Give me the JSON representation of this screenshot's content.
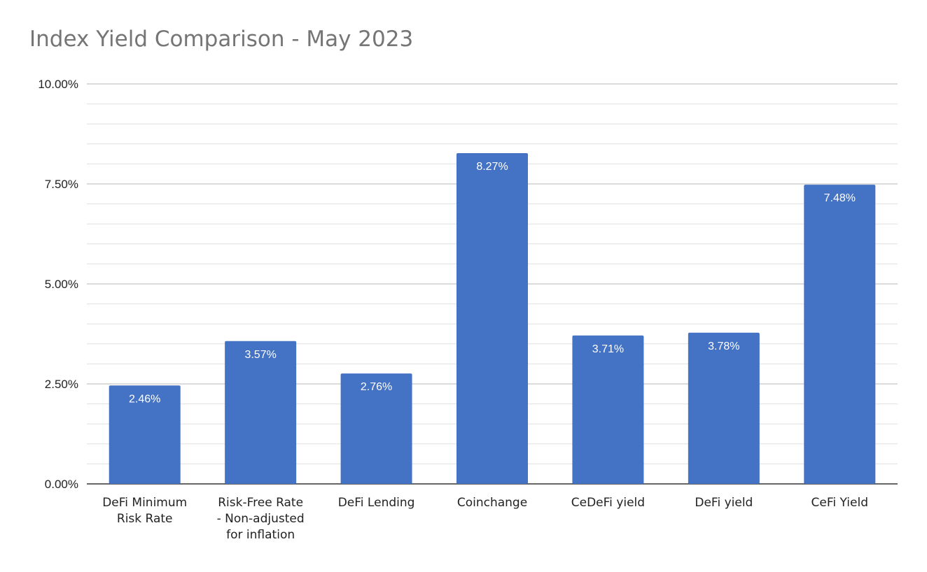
{
  "chart_data": {
    "type": "bar",
    "title": "Index Yield Comparison - May 2023",
    "categories": [
      [
        "DeFi Minimum",
        "Risk Rate"
      ],
      [
        "Risk-Free Rate",
        "- Non-adjusted",
        "for inflation"
      ],
      [
        "DeFi Lending"
      ],
      [
        "Coinchange"
      ],
      [
        "CeDeFi yield"
      ],
      [
        "DeFi yield"
      ],
      [
        "CeFi Yield"
      ]
    ],
    "values": [
      2.46,
      3.57,
      2.76,
      8.27,
      3.71,
      3.78,
      7.48
    ],
    "data_labels": [
      "2.46%",
      "3.57%",
      "2.76%",
      "8.27%",
      "3.71%",
      "3.78%",
      "7.48%"
    ],
    "y_ticks": [
      0,
      2.5,
      5,
      7.5,
      10
    ],
    "y_tick_labels": [
      "0.00%",
      "2.50%",
      "5.00%",
      "7.50%",
      "10.00%"
    ],
    "ylim": [
      0,
      10
    ],
    "minor_gridlines": true,
    "xlabel": "",
    "ylabel": "",
    "bar_color": "#4472c4",
    "major_grid_color": "#b7b7b7",
    "minor_grid_color": "#e0e0e0"
  }
}
